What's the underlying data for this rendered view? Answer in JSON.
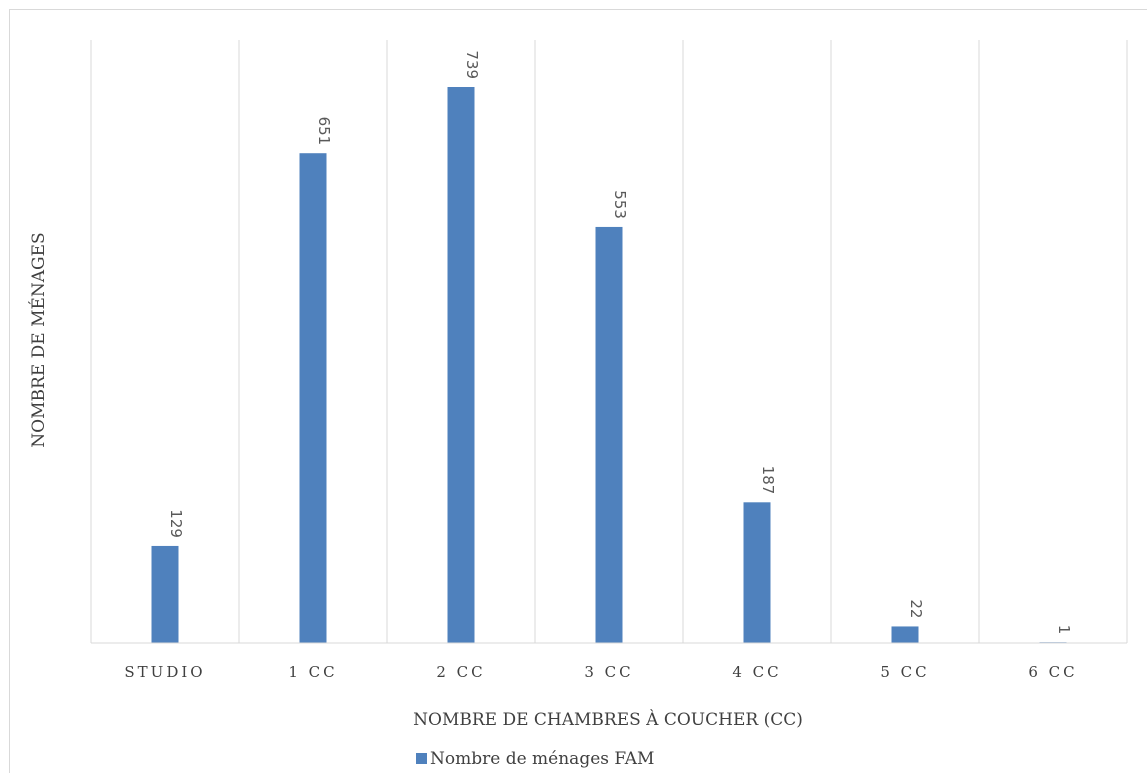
{
  "chart_data": {
    "type": "bar",
    "categories": [
      "STUDIO",
      "1 CC",
      "2 CC",
      "3 CC",
      "4 CC",
      "5 CC",
      "6 CC"
    ],
    "series": [
      {
        "name": "Nombre de ménages FAM",
        "values": [
          129,
          651,
          739,
          553,
          187,
          22,
          1
        ],
        "color": "#4f81bd"
      }
    ],
    "xlabel": "NOMBRE DE CHAMBRES À COUCHER (CC)",
    "ylabel": "NOMBRE DE MÉNAGES",
    "ylim": [
      0,
      739
    ],
    "grid": "vertical category separators",
    "legend": "bottom-center",
    "data_labels": true
  }
}
